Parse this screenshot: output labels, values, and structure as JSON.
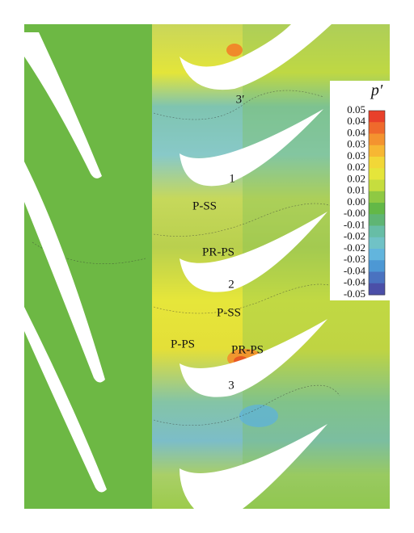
{
  "colorbar": {
    "title": "p′",
    "ticks": [
      "0.05",
      "0.04",
      "0.04",
      "0.03",
      "0.03",
      "0.02",
      "0.02",
      "0.01",
      "0.00",
      "-0.00",
      "-0.01",
      "-0.02",
      "-0.02",
      "-0.03",
      "-0.04",
      "-0.04",
      "-0.05"
    ]
  },
  "labels": [
    "3′",
    "1",
    "P-SS",
    "PR-PS",
    "2",
    "P-SS",
    "P-PS",
    "PR-PS",
    "3"
  ]
}
